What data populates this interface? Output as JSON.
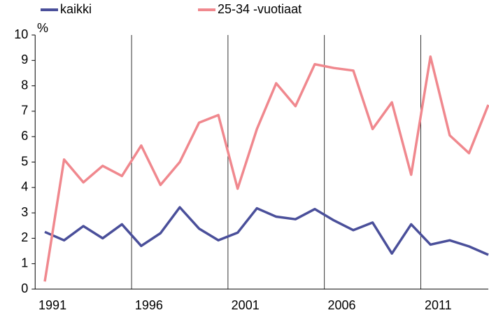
{
  "chart_data": {
    "type": "line",
    "y_label": "%",
    "categories": [
      null,
      "1991",
      null,
      null,
      null,
      null,
      "1996",
      null,
      null,
      null,
      null,
      "2001",
      null,
      null,
      null,
      null,
      "2006",
      null,
      null,
      null,
      null,
      "2011",
      null,
      null
    ],
    "series": [
      {
        "name": "kaikki",
        "color": "#4a4f9a",
        "values": [
          2.25,
          1.92,
          2.48,
          2.0,
          2.55,
          1.7,
          2.2,
          3.22,
          2.38,
          1.92,
          2.22,
          3.18,
          2.85,
          2.75,
          3.15,
          2.7,
          2.32,
          2.62,
          1.4,
          2.55,
          1.75,
          1.92,
          1.68,
          1.35
        ]
      },
      {
        "name": "25-34 -vuotiaat",
        "color": "#f0888e",
        "values": [
          0.3,
          5.1,
          4.2,
          4.85,
          4.45,
          5.65,
          4.1,
          5.0,
          6.55,
          6.85,
          3.95,
          6.3,
          8.1,
          7.2,
          8.85,
          8.7,
          8.6,
          6.3,
          7.35,
          4.5,
          9.15,
          6.05,
          5.35,
          7.25
        ]
      }
    ],
    "ylim": [
      0,
      10
    ],
    "yticks": [
      0,
      1,
      2,
      3,
      4,
      5,
      6,
      7,
      8,
      9,
      10
    ]
  }
}
